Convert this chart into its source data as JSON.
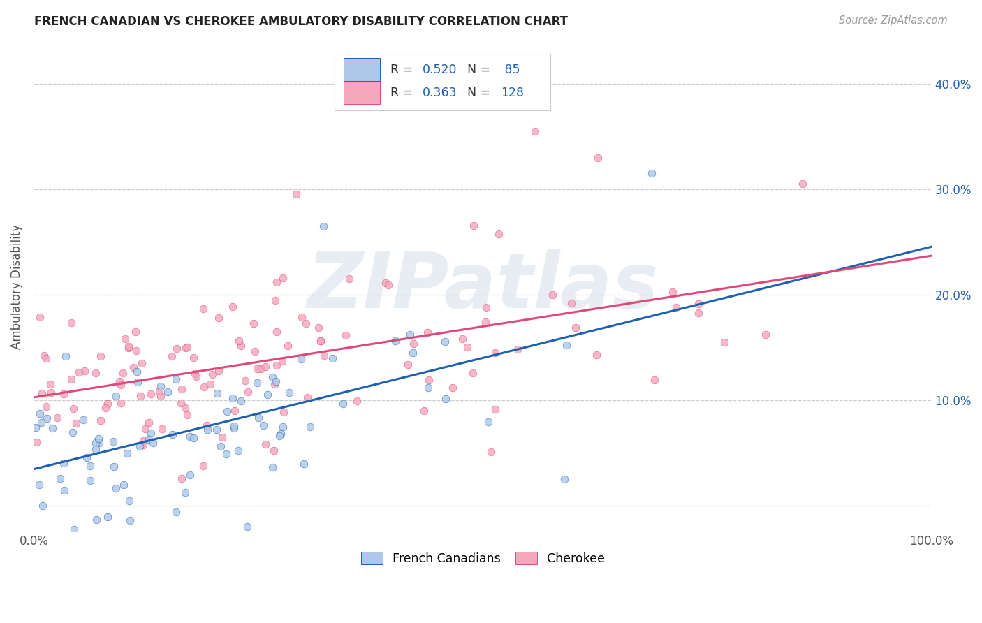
{
  "title": "FRENCH CANADIAN VS CHEROKEE AMBULATORY DISABILITY CORRELATION CHART",
  "source": "Source: ZipAtlas.com",
  "ylabel": "Ambulatory Disability",
  "xlim": [
    0.0,
    1.0
  ],
  "ylim": [
    -0.025,
    0.44
  ],
  "xticks": [
    0.0,
    0.2,
    0.4,
    0.6,
    0.8,
    1.0
  ],
  "xticklabels": [
    "0.0%",
    "",
    "",
    "",
    "",
    "100.0%"
  ],
  "yticks": [
    0.0,
    0.1,
    0.2,
    0.3,
    0.4
  ],
  "yticklabels": [
    "",
    "10.0%",
    "20.0%",
    "30.0%",
    "40.0%"
  ],
  "french_color": "#adc8e8",
  "cherokee_color": "#f4a8bc",
  "french_line_color": "#2060b0",
  "cherokee_line_color": "#e04878",
  "french_R": 0.52,
  "french_N": 85,
  "cherokee_R": 0.363,
  "cherokee_N": 128,
  "watermark_text": "ZIPatlas",
  "background_color": "#ffffff",
  "grid_color": "#cccccc",
  "title_color": "#222222",
  "axis_label_color": "#555555",
  "right_tick_color": "#2060b0",
  "legend_color": "#2060b0",
  "legend_text_color": "#333333"
}
